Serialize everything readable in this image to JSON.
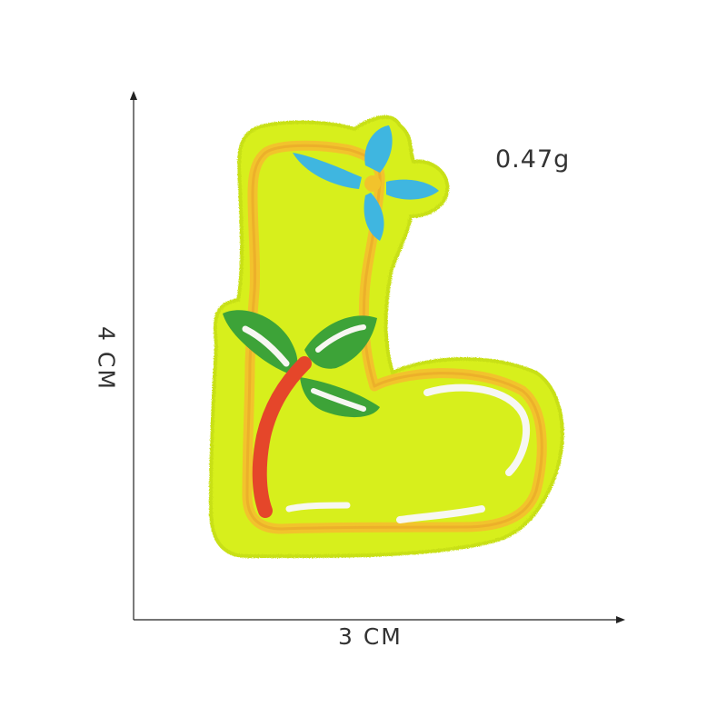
{
  "dimensions": {
    "width_label": "3 CM",
    "height_label": "4 CM"
  },
  "product": {
    "weight_label": "0.47g"
  },
  "colors": {
    "felt": "#d7ef1c",
    "felt_edge": "#c4dc14",
    "border_thread": "#f2c32c",
    "white_thread": "#f7f7f2",
    "flower_blue": "#3fb6e0",
    "leaf_green": "#3da338",
    "stem_red": "#e5462a",
    "axis_line": "#222222"
  }
}
